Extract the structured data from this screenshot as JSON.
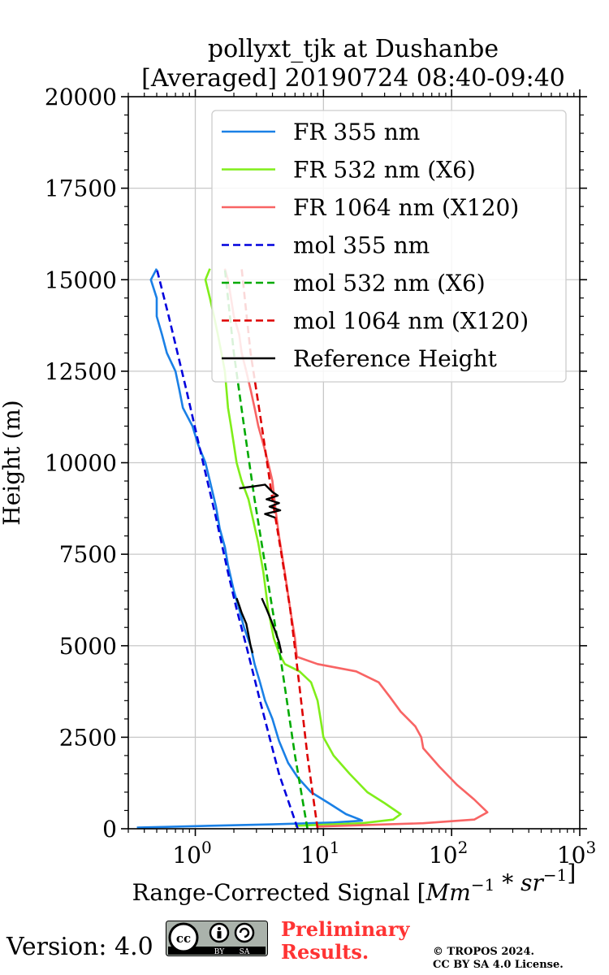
{
  "chart_data": {
    "type": "line",
    "title": [
      "pollyxt_tjk at Dushanbe",
      "[Averaged] 20190724 08:40-09:40"
    ],
    "xlabel": "Range-Corrected Signal [Mm^{-1} * sr^{-1}]",
    "ylabel": "Height (m)",
    "xscale": "log",
    "xlim": [
      0.3,
      1000
    ],
    "ylim": [
      0,
      20000
    ],
    "grid": true,
    "legend_position": "top-right",
    "x_ticks": [
      1,
      10,
      100,
      1000
    ],
    "y_ticks": [
      0,
      2500,
      5000,
      7500,
      10000,
      12500,
      15000,
      17500,
      20000
    ],
    "y_tick_labels": [
      "0",
      "2500",
      "5000",
      "7500",
      "10000",
      "12500",
      "15000",
      "17500",
      "20000"
    ],
    "series": [
      {
        "name": "FR 355 nm",
        "color": "#1a80e6",
        "style": "solid",
        "points": [
          [
            0.35,
            30
          ],
          [
            1.0,
            70
          ],
          [
            4.0,
            120
          ],
          [
            12,
            170
          ],
          [
            20,
            220
          ],
          [
            19,
            260
          ],
          [
            15,
            400
          ],
          [
            11,
            700
          ],
          [
            8,
            1000
          ],
          [
            6.3,
            1400
          ],
          [
            5.3,
            1800
          ],
          [
            4.5,
            2400
          ],
          [
            4.0,
            3000
          ],
          [
            3.5,
            3500
          ],
          [
            3.2,
            4000
          ],
          [
            2.9,
            4500
          ],
          [
            2.7,
            5000
          ],
          [
            2.4,
            5500
          ],
          [
            2.2,
            6000
          ],
          [
            2.0,
            6500
          ],
          [
            1.8,
            7200
          ],
          [
            1.7,
            7700
          ],
          [
            1.55,
            8200
          ],
          [
            1.45,
            8800
          ],
          [
            1.3,
            9500
          ],
          [
            1.2,
            10000
          ],
          [
            1.05,
            10500
          ],
          [
            0.95,
            11000
          ],
          [
            0.8,
            11500
          ],
          [
            0.75,
            12000
          ],
          [
            0.7,
            12500
          ],
          [
            0.6,
            13000
          ],
          [
            0.55,
            13500
          ],
          [
            0.5,
            14000
          ],
          [
            0.5,
            14500
          ],
          [
            0.45,
            15000
          ],
          [
            0.5,
            15300
          ]
        ]
      },
      {
        "name": "FR 532 nm (X6)",
        "color": "#80ee1a",
        "style": "solid",
        "points": [
          [
            6.0,
            80
          ],
          [
            20,
            150
          ],
          [
            35,
            250
          ],
          [
            40,
            400
          ],
          [
            30,
            700
          ],
          [
            22,
            1000
          ],
          [
            16,
            1500
          ],
          [
            12,
            2000
          ],
          [
            10,
            2500
          ],
          [
            9.5,
            3000
          ],
          [
            9.0,
            3500
          ],
          [
            8.0,
            4000
          ],
          [
            6.5,
            4300
          ],
          [
            5.0,
            4500
          ],
          [
            4.5,
            4800
          ],
          [
            4.1,
            5200
          ],
          [
            3.7,
            6000
          ],
          [
            3.4,
            7000
          ],
          [
            3.1,
            7800
          ],
          [
            2.8,
            8500
          ],
          [
            2.6,
            9000
          ],
          [
            2.3,
            9500
          ],
          [
            2.1,
            10000
          ],
          [
            2.0,
            10500
          ],
          [
            1.9,
            11000
          ],
          [
            1.8,
            11500
          ],
          [
            1.75,
            12000
          ],
          [
            1.7,
            12500
          ],
          [
            1.6,
            13000
          ],
          [
            1.5,
            13500
          ],
          [
            1.4,
            14000
          ],
          [
            1.3,
            14500
          ],
          [
            1.2,
            15000
          ],
          [
            1.3,
            15300
          ]
        ]
      },
      {
        "name": "FR 1064 nm (X120)",
        "color": "#f86464",
        "style": "solid",
        "points": [
          [
            9,
            60
          ],
          [
            60,
            150
          ],
          [
            150,
            250
          ],
          [
            190,
            450
          ],
          [
            150,
            800
          ],
          [
            110,
            1200
          ],
          [
            80,
            1700
          ],
          [
            60,
            2200
          ],
          [
            58,
            2500
          ],
          [
            52,
            2800
          ],
          [
            40,
            3200
          ],
          [
            33,
            3600
          ],
          [
            27,
            4000
          ],
          [
            18,
            4300
          ],
          [
            9,
            4500
          ],
          [
            6.2,
            4700
          ],
          [
            6.0,
            5200
          ],
          [
            5.5,
            6000
          ],
          [
            5.0,
            7000
          ],
          [
            4.5,
            8000
          ],
          [
            4.2,
            8800
          ],
          [
            4.0,
            9500
          ],
          [
            3.7,
            10000
          ],
          [
            3.4,
            10500
          ],
          [
            3.1,
            11000
          ],
          [
            2.9,
            11500
          ],
          [
            2.7,
            12000
          ],
          [
            2.5,
            12500
          ],
          [
            2.3,
            13000
          ],
          [
            2.2,
            13500
          ],
          [
            2.0,
            14000
          ],
          [
            1.9,
            14500
          ],
          [
            1.8,
            15000
          ],
          [
            1.7,
            15300
          ]
        ]
      },
      {
        "name": "mol 355 nm",
        "color": "#0000dd",
        "style": "dashed",
        "points": [
          [
            6.3,
            0
          ],
          [
            4.5,
            1500
          ],
          [
            3.2,
            3500
          ],
          [
            2.5,
            5000
          ],
          [
            2.1,
            6000
          ],
          [
            1.8,
            7000
          ],
          [
            1.45,
            8500
          ],
          [
            1.15,
            10000
          ],
          [
            0.85,
            12000
          ],
          [
            0.62,
            14000
          ],
          [
            0.5,
            15300
          ]
        ]
      },
      {
        "name": "mol 532 nm (X6)",
        "color": "#00aa00",
        "style": "dashed",
        "points": [
          [
            7.5,
            0
          ],
          [
            6.0,
            2000
          ],
          [
            4.7,
            4500
          ],
          [
            4.0,
            6000
          ],
          [
            3.4,
            7500
          ],
          [
            2.9,
            9000
          ],
          [
            2.4,
            11000
          ],
          [
            2.0,
            13000
          ],
          [
            1.7,
            15300
          ]
        ]
      },
      {
        "name": "mol 1064 nm (X120)",
        "color": "#dd0000",
        "style": "dashed",
        "points": [
          [
            9.0,
            0
          ],
          [
            7.5,
            2000
          ],
          [
            6.2,
            4500
          ],
          [
            5.5,
            6000
          ],
          [
            4.7,
            7500
          ],
          [
            4.0,
            9000
          ],
          [
            3.3,
            11000
          ],
          [
            2.7,
            13000
          ],
          [
            2.3,
            15300
          ]
        ]
      },
      {
        "name": "Reference Height",
        "color": "#000000",
        "style": "solid",
        "points": [
          [
            2.1,
            6300
          ],
          [
            2.2,
            6100
          ],
          [
            2.3,
            5900
          ],
          [
            2.5,
            5600
          ],
          [
            2.6,
            5300
          ],
          [
            2.7,
            5000
          ],
          [
            2.8,
            4800
          ],
          [
            3.3,
            6300
          ],
          [
            3.6,
            6000
          ],
          [
            3.9,
            5700
          ],
          [
            4.2,
            5400
          ],
          [
            4.5,
            5100
          ],
          [
            4.7,
            4800
          ],
          [
            2.2,
            9300
          ],
          [
            2.8,
            9350
          ],
          [
            3.5,
            9400
          ],
          [
            4.0,
            9200
          ],
          [
            4.4,
            9100
          ],
          [
            3.6,
            9000
          ],
          [
            4.5,
            8900
          ],
          [
            3.8,
            8800
          ],
          [
            4.6,
            8700
          ],
          [
            3.5,
            8600
          ],
          [
            4.2,
            8500
          ]
        ]
      }
    ]
  },
  "footer": {
    "version": "Version: 4.0",
    "license_badge_left": "BY",
    "license_badge_right": "SA",
    "preliminary_line1": "Preliminary",
    "preliminary_line2": "Results.",
    "copyright_line1": "© TROPOS 2024.",
    "copyright_line2": "CC BY SA 4.0 License."
  }
}
